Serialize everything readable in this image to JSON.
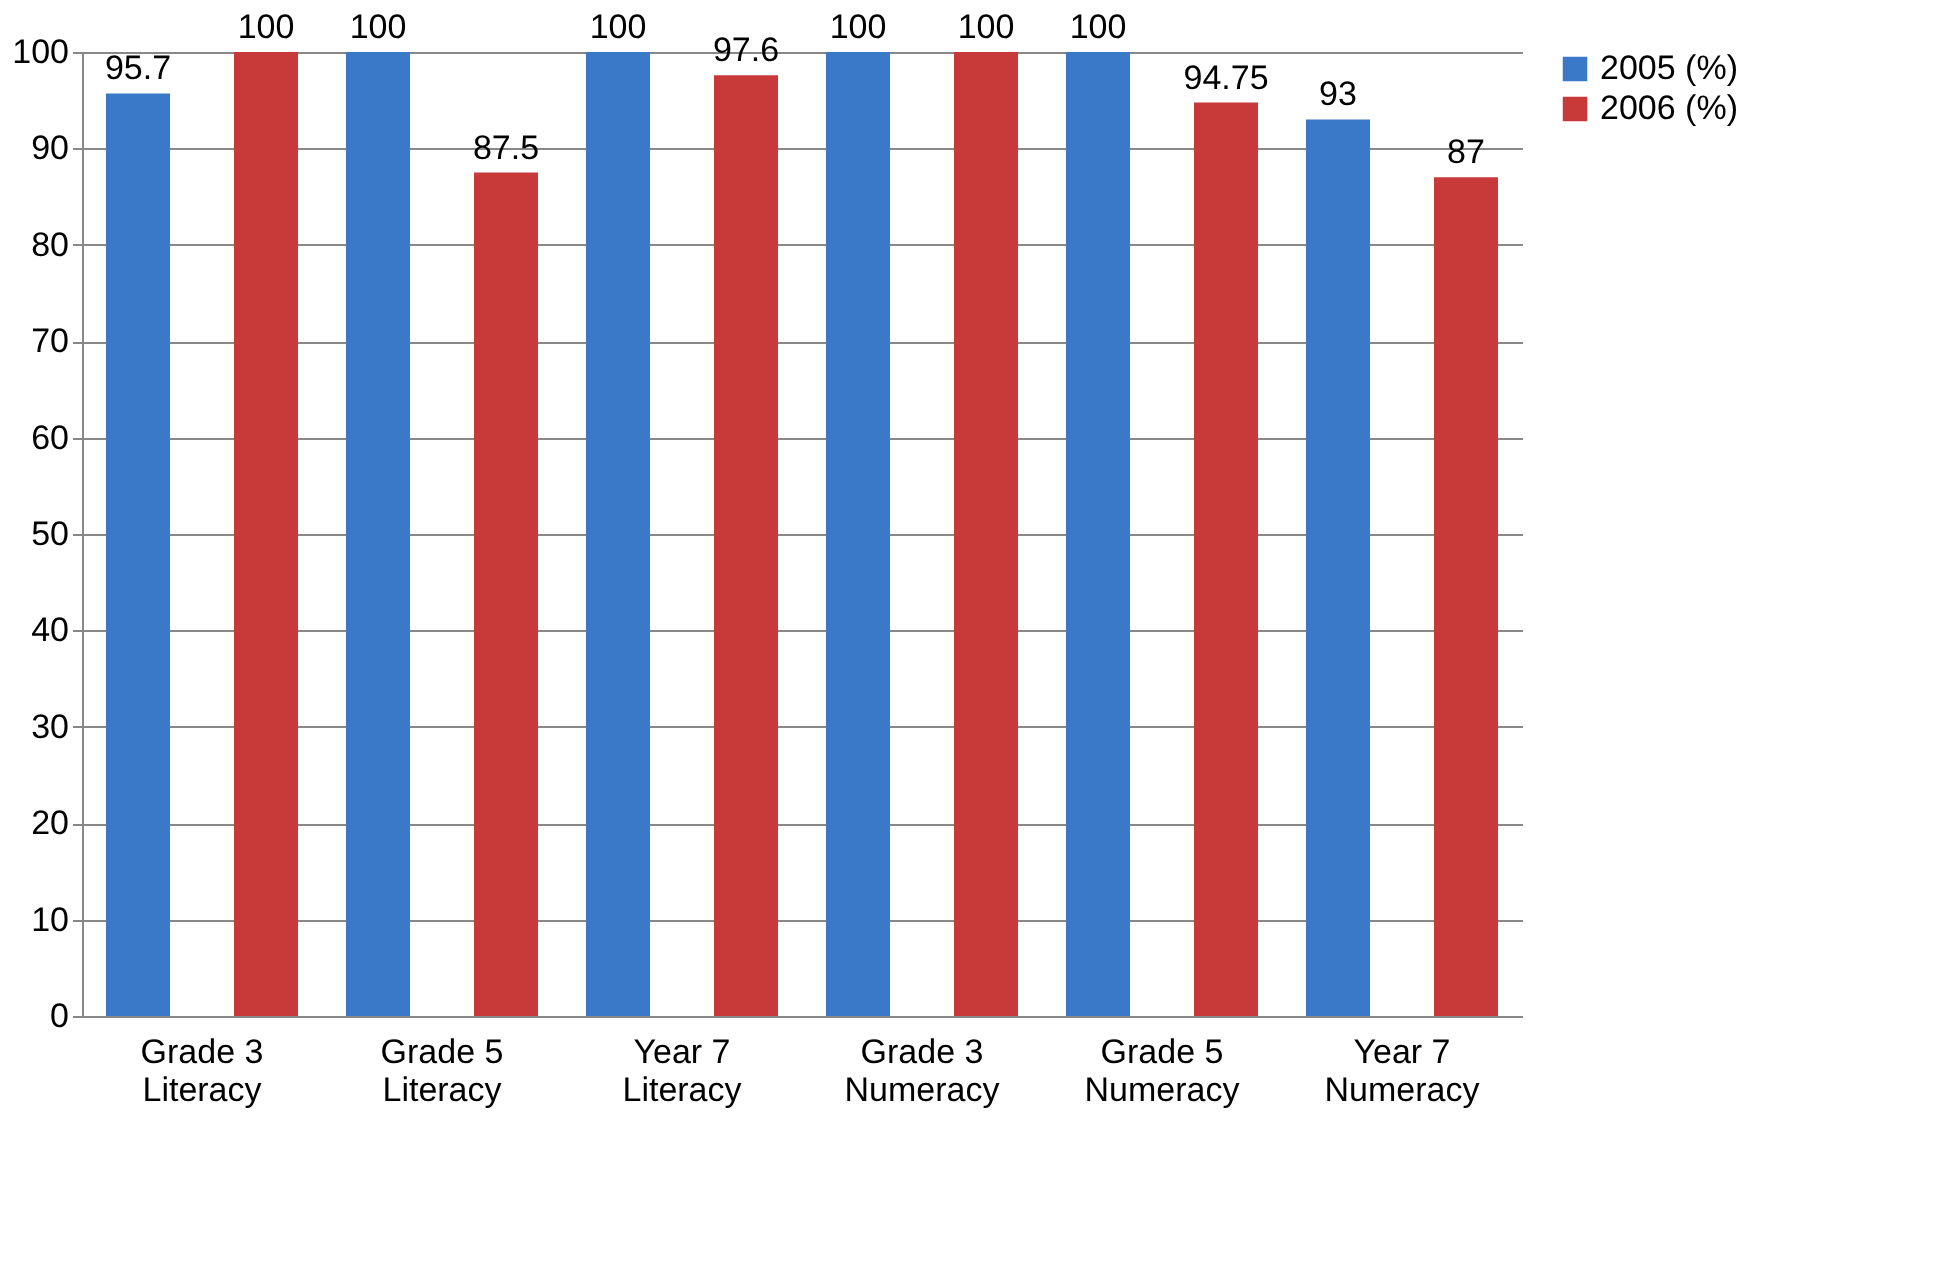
{
  "chart_data": {
    "type": "bar",
    "categories": [
      "Grade 3\nLiteracy",
      "Grade 5\nLiteracy",
      "Year 7\nLiteracy",
      "Grade 3\nNumeracy",
      "Grade 5\nNumeracy",
      "Year 7\nNumeracy"
    ],
    "series": [
      {
        "name": "2005 (%)",
        "color": "#3a78c8",
        "values": [
          95.7,
          100,
          100,
          100,
          100,
          93
        ]
      },
      {
        "name": "2006 (%)",
        "color": "#c83a3a",
        "values": [
          100,
          87.5,
          97.6,
          100,
          94.75,
          87
        ]
      }
    ],
    "ylim": [
      0,
      100
    ],
    "yticks": [
      0,
      10,
      20,
      30,
      40,
      50,
      60,
      70,
      80,
      90,
      100
    ],
    "grid": "y",
    "legend": "right",
    "data_labels": true
  }
}
